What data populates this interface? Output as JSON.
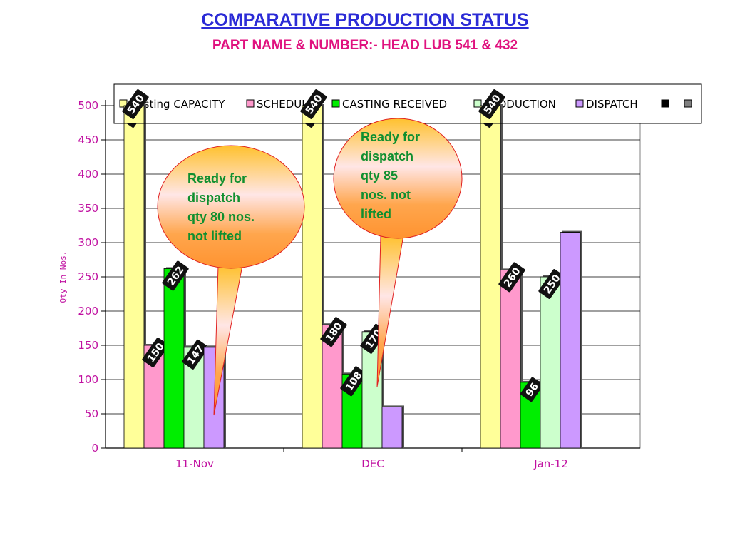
{
  "chart_data": {
    "type": "bar",
    "title": "COMPARATIVE PRODUCTION STATUS",
    "subtitle": "PART NAME & NUMBER:- HEAD LUB  541 & 432",
    "ylabel": "Qty In  Nos.",
    "xlabel": "",
    "ylim": [
      0,
      500
    ],
    "yticks": [
      0,
      50,
      100,
      150,
      200,
      250,
      300,
      350,
      400,
      450,
      500
    ],
    "categories": [
      "11-Nov",
      "DEC",
      "Jan-12"
    ],
    "series": [
      {
        "name": "Casting CAPACITY",
        "legend_text": "Casting CAPACITY",
        "color": "#ffff99",
        "values": [
          540,
          540,
          540
        ],
        "labels": [
          "540",
          "540",
          "540"
        ]
      },
      {
        "name": "SCHEDULE",
        "legend_text": "SCHEDULE",
        "color": "#ff99cc",
        "values": [
          150,
          180,
          260
        ],
        "labels": [
          "150",
          "180",
          "260"
        ]
      },
      {
        "name": "CASTING RECEIVED",
        "legend_text": "CASTING RECEIVED",
        "color": "#00ee00",
        "values": [
          262,
          108,
          96
        ],
        "labels": [
          "262",
          "108",
          "96"
        ]
      },
      {
        "name": "PRODUCTION",
        "legend_text": "PRODUCTION",
        "color": "#ccffcc",
        "values": [
          147,
          170,
          250
        ],
        "labels": [
          "147",
          "170",
          "250"
        ]
      },
      {
        "name": "DISPATCH",
        "legend_text": "DISPATCH",
        "color": "#cc99ff",
        "values": [
          147,
          60,
          315
        ],
        "labels": [
          "",
          "",
          ""
        ]
      },
      {
        "name": "",
        "legend_text": "",
        "color": "#000000",
        "values": [
          0,
          0,
          0
        ],
        "labels": [
          "",
          "",
          ""
        ]
      },
      {
        "name": "",
        "legend_text": "",
        "color": "#808080",
        "values": [
          0,
          0,
          0
        ],
        "labels": [
          "",
          "",
          ""
        ]
      }
    ],
    "grid": true,
    "legend_position": "top",
    "annotations": [
      {
        "lines": [
          "Ready for",
          "dispatch",
          "qty 80 nos.",
          "not lifted"
        ],
        "category": "11-Nov"
      },
      {
        "lines": [
          "Ready for",
          "dispatch",
          "qty 85",
          "nos. not",
          "lifted"
        ],
        "category": "DEC"
      }
    ]
  }
}
